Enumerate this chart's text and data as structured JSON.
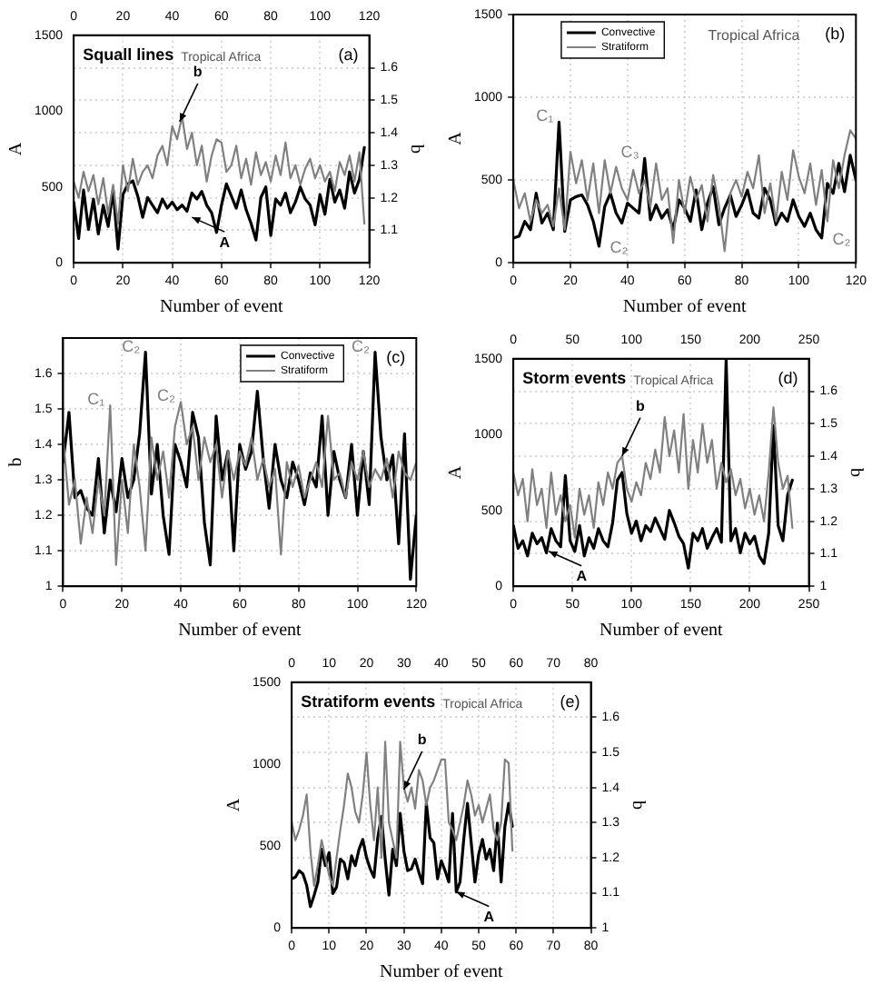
{
  "chart_data": [
    {
      "type": "line",
      "title": "Squall lines",
      "subtitle": "Tropical Africa",
      "xlabel": "Number of event",
      "ylabel": "A",
      "y2label": "b",
      "annotations": [
        "(a)",
        {
          "text": "b",
          "x": 43,
          "y": 930
        },
        {
          "text": "A",
          "x": 48,
          "y": 300
        }
      ],
      "x": [
        0,
        2,
        4,
        6,
        8,
        10,
        12,
        14,
        16,
        18,
        20,
        22,
        24,
        26,
        28,
        30,
        32,
        34,
        36,
        38,
        40,
        42,
        44,
        46,
        48,
        50,
        52,
        54,
        56,
        58,
        60,
        62,
        64,
        66,
        68,
        70,
        72,
        74,
        76,
        78,
        80,
        82,
        84,
        86,
        88,
        90,
        92,
        94,
        96,
        98,
        100,
        102,
        104,
        106,
        108,
        110,
        112,
        114,
        116,
        118
      ],
      "series": [
        {
          "color": "#000000",
          "values": [
            400,
            160,
            480,
            220,
            420,
            190,
            380,
            240,
            480,
            90,
            450,
            520,
            540,
            440,
            300,
            430,
            380,
            330,
            420,
            360,
            400,
            350,
            380,
            340,
            460,
            420,
            470,
            380,
            330,
            200,
            380,
            520,
            440,
            360,
            480,
            350,
            260,
            150,
            430,
            500,
            180,
            420,
            380,
            460,
            330,
            400,
            500,
            420,
            380,
            250,
            450,
            320,
            550,
            400,
            480,
            360,
            600,
            460,
            550,
            760
          ]
        },
        {
          "color": "#808080",
          "axis": "y2",
          "values": [
            1.25,
            1.2,
            1.28,
            1.22,
            1.27,
            1.18,
            1.26,
            1.15,
            1.24,
            1.12,
            1.3,
            1.22,
            1.32,
            1.24,
            1.28,
            1.3,
            1.26,
            1.33,
            1.36,
            1.3,
            1.42,
            1.38,
            1.45,
            1.35,
            1.4,
            1.3,
            1.36,
            1.25,
            1.33,
            1.38,
            1.37,
            1.28,
            1.3,
            1.36,
            1.26,
            1.32,
            1.24,
            1.34,
            1.27,
            1.31,
            1.25,
            1.33,
            1.27,
            1.37,
            1.26,
            1.3,
            1.24,
            1.29,
            1.32,
            1.26,
            1.3,
            1.25,
            1.28,
            1.22,
            1.31,
            1.27,
            1.33,
            1.25,
            1.34,
            1.12
          ]
        }
      ],
      "xlim": [
        0,
        120
      ],
      "xticks": [
        0,
        20,
        40,
        60,
        80,
        100,
        120
      ],
      "x2lim": [
        0,
        120
      ],
      "x2ticks": [
        0,
        20,
        40,
        60,
        80,
        100,
        120
      ],
      "ylim": [
        0,
        1500
      ],
      "yticks": [
        0,
        500,
        1000,
        1500
      ],
      "y2lim": [
        1,
        1.7
      ],
      "y2ticks": [
        1.1,
        1.2,
        1.3,
        1.4,
        1.5,
        1.6
      ],
      "grid": true
    },
    {
      "type": "line",
      "subtitle": "Tropical Africa",
      "xlabel": "Number of event",
      "ylabel": "A",
      "annotations": [
        "(b)",
        {
          "text": "C₁",
          "x": 16,
          "y": 850
        },
        {
          "text": "C₂",
          "x": 30,
          "y": 100
        },
        {
          "text": "C₃",
          "x": 46,
          "y": 630
        },
        {
          "text": "C₂",
          "x": 108,
          "y": 150
        }
      ],
      "x": [
        0,
        2,
        4,
        6,
        8,
        10,
        12,
        14,
        16,
        18,
        20,
        22,
        24,
        26,
        28,
        30,
        32,
        34,
        36,
        38,
        40,
        42,
        44,
        46,
        48,
        50,
        52,
        54,
        56,
        58,
        60,
        62,
        64,
        66,
        68,
        70,
        72,
        74,
        76,
        78,
        80,
        82,
        84,
        86,
        88,
        90,
        92,
        94,
        96,
        98,
        100,
        102,
        104,
        106,
        108,
        110,
        112,
        114,
        116,
        118,
        120
      ],
      "series": [
        {
          "name": "Convective",
          "color": "#000000",
          "values": [
            150,
            160,
            250,
            200,
            420,
            240,
            300,
            200,
            850,
            190,
            380,
            400,
            410,
            350,
            250,
            100,
            340,
            420,
            300,
            240,
            360,
            330,
            300,
            630,
            260,
            350,
            270,
            320,
            200,
            380,
            330,
            250,
            440,
            200,
            360,
            460,
            230,
            330,
            410,
            280,
            350,
            440,
            300,
            270,
            450,
            380,
            230,
            300,
            250,
            380,
            280,
            220,
            300,
            200,
            150,
            480,
            420,
            600,
            430,
            650,
            500
          ]
        },
        {
          "name": "Stratiform",
          "color": "#808080",
          "values": [
            500,
            330,
            420,
            250,
            380,
            300,
            350,
            220,
            450,
            200,
            670,
            480,
            620,
            380,
            600,
            300,
            620,
            420,
            580,
            450,
            380,
            560,
            420,
            500,
            340,
            600,
            380,
            450,
            120,
            500,
            300,
            520,
            380,
            470,
            250,
            530,
            350,
            70,
            420,
            500,
            400,
            550,
            450,
            650,
            300,
            480,
            250,
            550,
            380,
            680,
            520,
            420,
            600,
            350,
            560,
            250,
            620,
            450,
            650,
            800,
            750
          ]
        }
      ],
      "xlim": [
        0,
        120
      ],
      "xticks": [
        0,
        20,
        40,
        60,
        80,
        100,
        120
      ],
      "ylim": [
        0,
        1500
      ],
      "yticks": [
        0,
        500,
        1000,
        1500
      ],
      "grid": true,
      "legend": "top"
    },
    {
      "type": "line",
      "xlabel": "Number of event",
      "ylabel": "b",
      "annotations": [
        "(c)",
        {
          "text": "C₁",
          "x": 16,
          "y": 1.51
        },
        {
          "text": "C₂",
          "x": 28,
          "y": 1.66
        },
        {
          "text": "C₂",
          "x": 40,
          "y": 1.52
        },
        {
          "text": "C₂",
          "x": 106,
          "y": 1.66
        }
      ],
      "x": [
        0,
        2,
        4,
        6,
        8,
        10,
        12,
        14,
        16,
        18,
        20,
        22,
        24,
        26,
        28,
        30,
        32,
        34,
        36,
        38,
        40,
        42,
        44,
        46,
        48,
        50,
        52,
        54,
        56,
        58,
        60,
        62,
        64,
        66,
        68,
        70,
        72,
        74,
        76,
        78,
        80,
        82,
        84,
        86,
        88,
        90,
        92,
        94,
        96,
        98,
        100,
        102,
        104,
        106,
        108,
        110,
        112,
        114,
        116,
        118,
        120
      ],
      "series": [
        {
          "name": "Convective",
          "color": "#000000",
          "values": [
            1.35,
            1.49,
            1.25,
            1.27,
            1.22,
            1.2,
            1.36,
            1.15,
            1.3,
            1.21,
            1.36,
            1.25,
            1.3,
            1.43,
            1.66,
            1.26,
            1.4,
            1.2,
            1.09,
            1.4,
            1.35,
            1.28,
            1.49,
            1.42,
            1.18,
            1.06,
            1.48,
            1.3,
            1.38,
            1.1,
            1.4,
            1.33,
            1.38,
            1.55,
            1.36,
            1.22,
            1.4,
            1.3,
            1.25,
            1.35,
            1.3,
            1.23,
            1.32,
            1.28,
            1.48,
            1.2,
            1.38,
            1.3,
            1.25,
            1.4,
            1.2,
            1.38,
            1.23,
            1.66,
            1.42,
            1.3,
            1.37,
            1.12,
            1.43,
            1.02,
            1.2
          ]
        },
        {
          "name": "Stratiform",
          "color": "#808080",
          "values": [
            1.42,
            1.23,
            1.3,
            1.12,
            1.25,
            1.15,
            1.3,
            1.2,
            1.51,
            1.06,
            1.3,
            1.15,
            1.4,
            1.28,
            1.1,
            1.42,
            1.3,
            1.38,
            1.25,
            1.45,
            1.52,
            1.4,
            1.45,
            1.3,
            1.42,
            1.35,
            1.4,
            1.25,
            1.38,
            1.3,
            1.38,
            1.34,
            1.42,
            1.3,
            1.36,
            1.28,
            1.33,
            1.09,
            1.35,
            1.28,
            1.34,
            1.25,
            1.3,
            1.35,
            1.28,
            1.48,
            1.3,
            1.32,
            1.25,
            1.35,
            1.3,
            1.38,
            1.28,
            1.33,
            1.3,
            1.36,
            1.25,
            1.38,
            1.32,
            1.3,
            1.35
          ]
        }
      ],
      "xlim": [
        0,
        120
      ],
      "xticks": [
        0,
        20,
        40,
        60,
        80,
        100,
        120
      ],
      "ylim": [
        1,
        1.7
      ],
      "yticks": [
        1,
        1.1,
        1.2,
        1.3,
        1.4,
        1.5,
        1.6
      ],
      "grid": true,
      "legend": "top right"
    },
    {
      "type": "line",
      "title": "Storm events",
      "subtitle": "Tropical Africa",
      "xlabel": "Number of event",
      "ylabel": "A",
      "y2label": "b",
      "annotations": [
        "(d)",
        {
          "text": "b",
          "x": 92,
          "y": 860
        },
        {
          "text": "A",
          "x": 30,
          "y": 230
        }
      ],
      "x": [
        0,
        4,
        8,
        12,
        16,
        20,
        24,
        28,
        32,
        36,
        40,
        44,
        48,
        52,
        56,
        60,
        64,
        68,
        72,
        76,
        80,
        84,
        88,
        92,
        96,
        100,
        104,
        108,
        112,
        116,
        120,
        124,
        128,
        132,
        136,
        140,
        144,
        148,
        152,
        156,
        160,
        164,
        168,
        172,
        176,
        180,
        184,
        188,
        192,
        196,
        200,
        204,
        208,
        212,
        216,
        220,
        224,
        228,
        232,
        236
      ],
      "series": [
        {
          "color": "#000000",
          "values": [
            400,
            250,
            300,
            200,
            350,
            280,
            320,
            220,
            380,
            300,
            260,
            730,
            300,
            230,
            400,
            200,
            320,
            250,
            380,
            300,
            260,
            420,
            700,
            750,
            480,
            350,
            430,
            300,
            400,
            360,
            450,
            380,
            310,
            500,
            420,
            330,
            280,
            120,
            350,
            300,
            380,
            250,
            320,
            380,
            290,
            1500,
            300,
            380,
            220,
            350,
            280,
            330,
            200,
            150,
            350,
            1060,
            400,
            300,
            600,
            700
          ]
        },
        {
          "color": "#808080",
          "axis": "y2",
          "values": [
            1.35,
            1.28,
            1.33,
            1.2,
            1.36,
            1.25,
            1.3,
            1.18,
            1.35,
            1.22,
            1.28,
            1.2,
            1.25,
            1.15,
            1.3,
            1.22,
            1.28,
            1.18,
            1.32,
            1.25,
            1.35,
            1.3,
            1.38,
            1.4,
            1.3,
            1.26,
            1.32,
            1.28,
            1.38,
            1.33,
            1.42,
            1.35,
            1.52,
            1.4,
            1.48,
            1.35,
            1.53,
            1.3,
            1.45,
            1.35,
            1.5,
            1.38,
            1.45,
            1.3,
            1.38,
            1.32,
            1.36,
            1.28,
            1.33,
            1.24,
            1.3,
            1.22,
            1.28,
            1.2,
            1.35,
            1.55,
            1.38,
            1.3,
            1.34,
            1.18
          ]
        }
      ],
      "xlim": [
        0,
        250
      ],
      "xticks": [
        0,
        50,
        100,
        150,
        200,
        250
      ],
      "x2lim": [
        0,
        250
      ],
      "x2ticks": [
        0,
        50,
        100,
        150,
        200,
        250
      ],
      "ylim": [
        0,
        1500
      ],
      "yticks": [
        0,
        500,
        1000,
        1500
      ],
      "y2lim": [
        1,
        1.7
      ],
      "y2ticks": [
        1,
        1.1,
        1.2,
        1.3,
        1.4,
        1.5,
        1.6
      ],
      "grid": true
    },
    {
      "type": "line",
      "title": "Stratiform events",
      "subtitle": "Tropical Africa",
      "xlabel": "Number of event",
      "ylabel": "A",
      "y2label": "b",
      "annotations": [
        "(e)",
        {
          "text": "b",
          "x": 30,
          "y": 845
        },
        {
          "text": "A",
          "x": 44,
          "y": 220
        }
      ],
      "x": [
        0,
        1,
        2,
        3,
        4,
        5,
        6,
        7,
        8,
        9,
        10,
        11,
        12,
        13,
        14,
        15,
        16,
        17,
        18,
        19,
        20,
        21,
        22,
        23,
        24,
        25,
        26,
        27,
        28,
        29,
        30,
        31,
        32,
        33,
        34,
        35,
        36,
        37,
        38,
        39,
        40,
        41,
        42,
        43,
        44,
        45,
        46,
        47,
        48,
        49,
        50,
        51,
        52,
        53,
        54,
        55,
        56,
        57,
        58,
        59
      ],
      "series": [
        {
          "color": "#000000",
          "values": [
            300,
            310,
            350,
            330,
            260,
            130,
            200,
            280,
            480,
            380,
            460,
            210,
            250,
            420,
            400,
            300,
            440,
            380,
            480,
            540,
            430,
            360,
            310,
            550,
            680,
            420,
            200,
            480,
            380,
            700,
            470,
            350,
            360,
            420,
            340,
            270,
            760,
            550,
            520,
            300,
            410,
            350,
            280,
            700,
            220,
            280,
            540,
            760,
            520,
            280,
            450,
            540,
            420,
            480,
            350,
            640,
            280,
            620,
            760,
            620
          ]
        },
        {
          "color": "#808080",
          "axis": "y2",
          "values": [
            1.3,
            1.25,
            1.28,
            1.32,
            1.38,
            1.22,
            1.12,
            1.18,
            1.25,
            1.2,
            1.15,
            1.12,
            1.2,
            1.28,
            1.35,
            1.44,
            1.4,
            1.33,
            1.3,
            1.38,
            1.5,
            1.35,
            1.25,
            1.4,
            1.2,
            1.53,
            1.3,
            1.25,
            1.2,
            1.53,
            1.4,
            1.36,
            1.4,
            1.34,
            1.45,
            1.42,
            1.35,
            1.4,
            1.42,
            1.45,
            1.48,
            1.48,
            1.3,
            1.28,
            1.25,
            1.3,
            1.35,
            1.42,
            1.38,
            1.32,
            1.35,
            1.3,
            1.34,
            1.38,
            1.28,
            1.25,
            1.3,
            1.48,
            1.47,
            1.22
          ]
        }
      ],
      "xlim": [
        0,
        80
      ],
      "xticks": [
        0,
        10,
        20,
        30,
        40,
        50,
        60,
        70,
        80
      ],
      "x2lim": [
        0,
        80
      ],
      "x2ticks": [
        0,
        10,
        20,
        30,
        40,
        50,
        60,
        70,
        80
      ],
      "ylim": [
        0,
        1500
      ],
      "yticks": [
        0,
        500,
        1000,
        1500
      ],
      "y2lim": [
        1,
        1.7
      ],
      "y2ticks": [
        1,
        1.1,
        1.2,
        1.3,
        1.4,
        1.5,
        1.6
      ],
      "grid": true
    }
  ]
}
